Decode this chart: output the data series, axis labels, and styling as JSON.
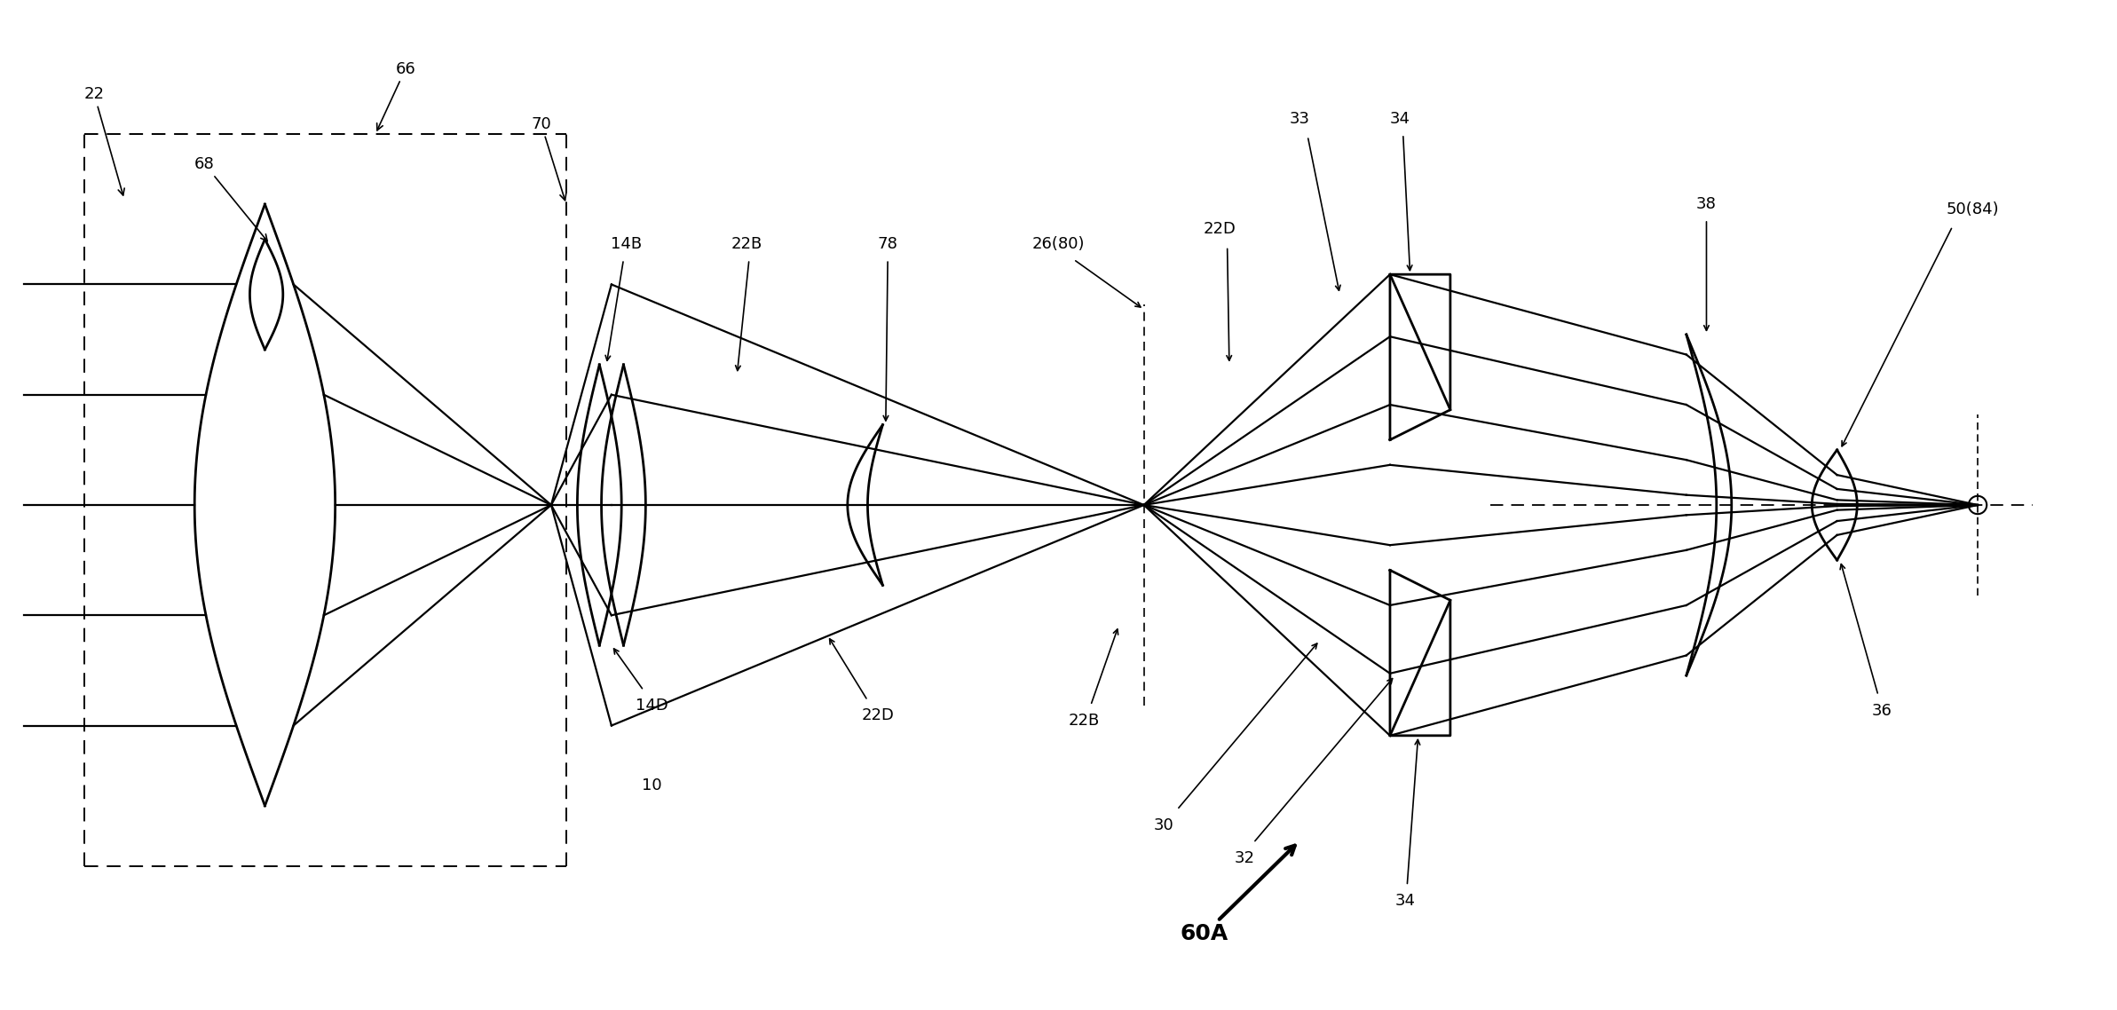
{
  "bg_color": "#ffffff",
  "figsize": [
    23.85,
    11.38
  ],
  "dpi": 100,
  "lw": 1.6,
  "lw2": 2.0,
  "fs": 13,
  "xlim": [
    0,
    2.1
  ],
  "ylim": [
    0,
    1.0
  ],
  "OAY": 0.5
}
